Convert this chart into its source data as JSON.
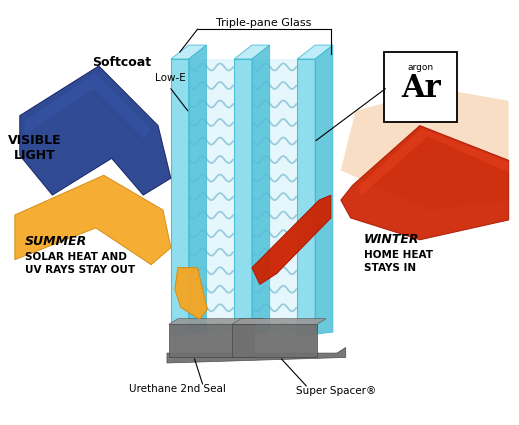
{
  "bg_color": "#ffffff",
  "glass_face_color": "#7dd8ea",
  "glass_edge_color": "#3ab8d0",
  "glass_top_color": "#b8eaf5",
  "glass_side_color": "#50c0d8",
  "gap_fill_color": "#d8f0f8",
  "wave_color": "#90c8e0",
  "spacer_color": "#808080",
  "spacer_top_color": "#aaaaaa",
  "spacer_dark_color": "#606060",
  "blue_arrow": "#1e3b8a",
  "blue_arrow_edge": "#122060",
  "orange_arrow": "#f5a623",
  "orange_arrow_edge": "#d48a10",
  "red_arrow": "#cc2200",
  "red_arrow_edge": "#aa1500",
  "red_glow": "#e87050",
  "peach_glow": "#f5c8a0",
  "label_triple_pane": "Triple-pane Glass",
  "label_softcoat": "Softcoat",
  "label_lowe": "Low-E",
  "label_visible": "VISIBLE\nLIGHT",
  "label_summer_title": "SUMMER",
  "label_summer_body": "SOLAR HEAT AND\nUV RAYS STAY OUT",
  "label_winter_title": "WINTER",
  "label_winter_body": "HOME HEAT\nSTAYS IN",
  "label_argon_small": "argon",
  "label_argon_big": "Ar",
  "label_urethane": "Urethane 2nd Seal",
  "label_spacer": "Super Spacer®"
}
